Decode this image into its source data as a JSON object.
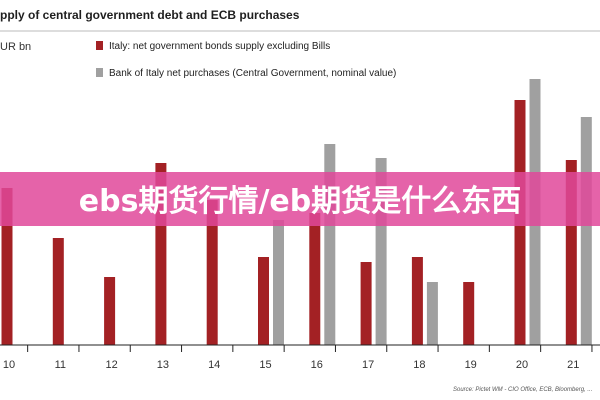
{
  "chart_data": {
    "type": "bar",
    "title": "pply of central government debt and ECB purchases",
    "ylabel": "UR bn",
    "categories": [
      "10",
      "11",
      "12",
      "13",
      "14",
      "15",
      "16",
      "17",
      "18",
      "19",
      "20",
      "21"
    ],
    "ylim": [
      0,
      320
    ],
    "grid": false,
    "legend_position": "top-left",
    "series": [
      {
        "name": "Italy: net government bonds supply excluding Bills",
        "color": "#a32124",
        "values": [
          157,
          107,
          68,
          182,
          145,
          88,
          132,
          83,
          88,
          63,
          245,
          185
        ]
      },
      {
        "name": "Bank of Italy net purchases (Central Government, nominal value)",
        "color": "#a0a0a0",
        "values": [
          0,
          0,
          0,
          0,
          0,
          125,
          201,
          187,
          63,
          0,
          266,
          228
        ]
      }
    ],
    "source": "Source: Pictet WM - CIO Office, ECB, Bloomberg, ..."
  },
  "banner": {
    "text": "ebs期货行情/eb期货是什么东西",
    "color": "#e0489a"
  }
}
